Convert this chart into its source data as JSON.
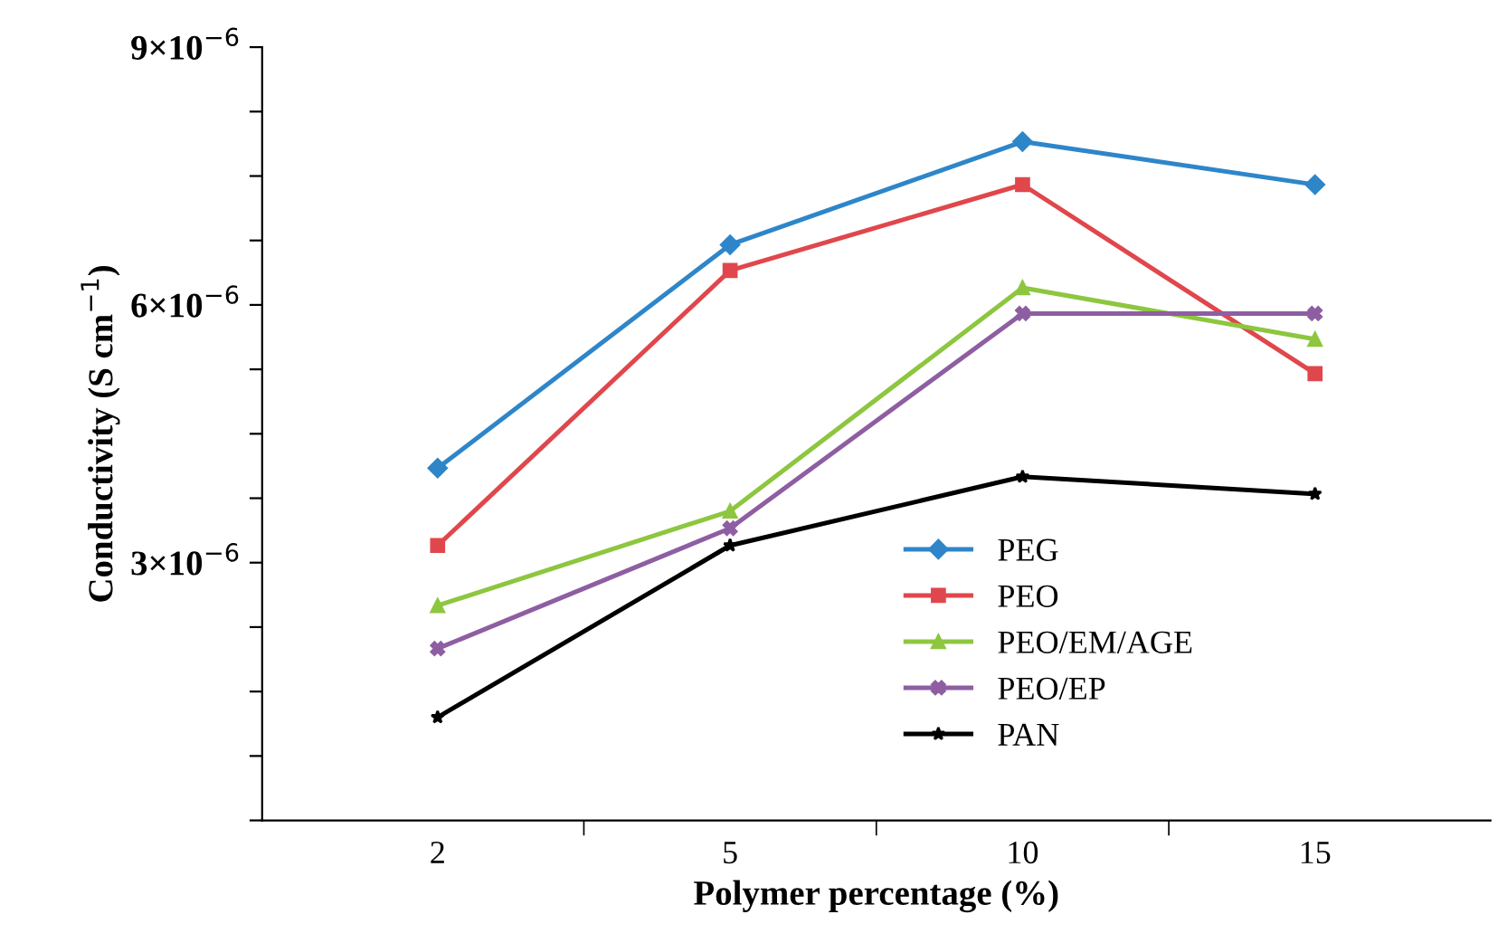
{
  "chart_data": {
    "type": "line",
    "xlabel": "Polymer percentage (%)",
    "ylabel": "Conductivity (S cm$^{−1}$)",
    "categories": [
      "2",
      "5",
      "10",
      "15"
    ],
    "ylim": [
      0,
      9e-06
    ],
    "yticks": [
      {
        "value": 0,
        "label": null
      },
      {
        "value": 7.5e-07,
        "label": null
      },
      {
        "value": 1.5e-06,
        "label": null
      },
      {
        "value": 2.25e-06,
        "label": null
      },
      {
        "value": 3e-06,
        "label": "3×10$^{−6}$"
      },
      {
        "value": 3.75e-06,
        "label": null
      },
      {
        "value": 4.5e-06,
        "label": null
      },
      {
        "value": 5.25e-06,
        "label": null
      },
      {
        "value": 6e-06,
        "label": "6×10$^{−6}$"
      },
      {
        "value": 6.75e-06,
        "label": null
      },
      {
        "value": 7.5e-06,
        "label": null
      },
      {
        "value": 8.25e-06,
        "label": null
      },
      {
        "value": 9e-06,
        "label": "9×10$^{−6}$"
      }
    ],
    "grid": false,
    "legend": "bottom right",
    "line_style": "solid",
    "series": [
      {
        "name": "PEG",
        "color": "#2e86c9",
        "marker": "diamond",
        "values": [
          4.1e-06,
          6.7e-06,
          7.9e-06,
          7.4e-06
        ]
      },
      {
        "name": "PEO",
        "color": "#e0474c",
        "marker": "square",
        "values": [
          3.2e-06,
          6.4e-06,
          7.4e-06,
          5.2e-06
        ]
      },
      {
        "name": "PEO/EM/AGE",
        "color": "#8dc63f",
        "marker": "triangle",
        "values": [
          2.5e-06,
          3.6e-06,
          6.2e-06,
          5.6e-06
        ]
      },
      {
        "name": "PEO/EP",
        "color": "#8e5ea2",
        "marker": "cross",
        "values": [
          2e-06,
          3.4e-06,
          5.9e-06,
          5.9e-06
        ]
      },
      {
        "name": "PAN",
        "color": "#000000",
        "marker": "star",
        "values": [
          1.2e-06,
          3.2e-06,
          4e-06,
          3.8e-06
        ]
      }
    ]
  }
}
